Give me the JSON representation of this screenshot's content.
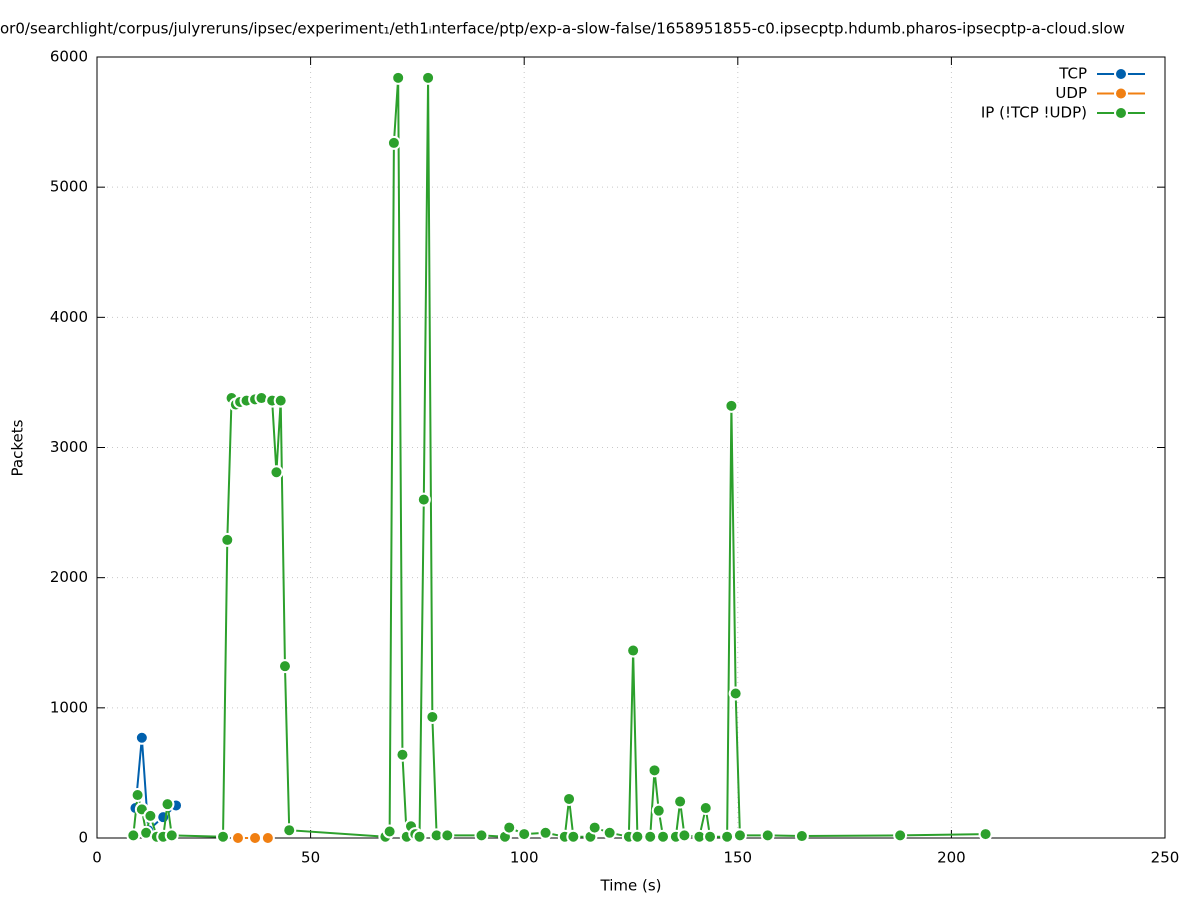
{
  "chart_data": {
    "type": "line",
    "title": "or0/searchlight/corpus/julyreruns/ipsec/experiment₁/eth1ᵢnterface/ptp/exp-a-slow-false/1658951855-c0.ipsecptp.hdumb.pharos-ipsecptp-a-cloud.slow",
    "xlabel": "Time (s)",
    "ylabel": "Packets",
    "xlim": [
      0,
      250
    ],
    "ylim": [
      0,
      6000
    ],
    "xticks": [
      0,
      50,
      100,
      150,
      200,
      250
    ],
    "yticks": [
      0,
      1000,
      2000,
      3000,
      4000,
      5000,
      6000
    ],
    "grid": true,
    "legend": "upper right",
    "series": [
      {
        "name": "TCP",
        "color": "#0060ad",
        "x": [
          9,
          10.5,
          12,
          15.5,
          18.5
        ],
        "values": [
          230,
          770,
          60,
          160,
          250
        ]
      },
      {
        "name": "UDP",
        "color": "#f07f12",
        "x": [
          33,
          37,
          40
        ],
        "values": [
          0,
          0,
          0
        ]
      },
      {
        "name": "IP (!TCP  !UDP)",
        "color": "#2ca02c",
        "x": [
          8.5,
          9.5,
          10.5,
          11.5,
          12.5,
          14,
          15.5,
          16.5,
          17.5,
          29.5,
          30.5,
          31.5,
          32.5,
          33.5,
          35,
          37,
          38.5,
          41,
          42,
          43,
          44,
          45,
          67.5,
          68.5,
          69.5,
          70.5,
          71.5,
          72.5,
          73.5,
          74.5,
          75.5,
          76.5,
          77.5,
          78.5,
          79.5,
          82,
          90,
          95.5,
          96.5,
          100,
          105,
          109.5,
          110.5,
          111.5,
          115.5,
          116.5,
          120,
          124.5,
          125.5,
          126.5,
          129.5,
          130.5,
          131.5,
          132.5,
          135.5,
          136.5,
          137.5,
          141,
          142.5,
          143.5,
          147.5,
          148.5,
          149.5,
          150.5,
          157,
          165,
          188,
          208
        ],
        "values": [
          20,
          330,
          220,
          40,
          170,
          10,
          10,
          260,
          20,
          10,
          2290,
          3380,
          3330,
          3350,
          3360,
          3370,
          3380,
          3360,
          2810,
          3360,
          1320,
          60,
          10,
          50,
          5340,
          5840,
          640,
          10,
          90,
          30,
          10,
          2600,
          5840,
          930,
          20,
          20,
          20,
          10,
          80,
          30,
          40,
          10,
          300,
          10,
          10,
          80,
          40,
          10,
          1440,
          10,
          10,
          520,
          210,
          10,
          10,
          280,
          20,
          10,
          230,
          10,
          10,
          3320,
          1110,
          20,
          20,
          15,
          20,
          30
        ]
      }
    ]
  }
}
